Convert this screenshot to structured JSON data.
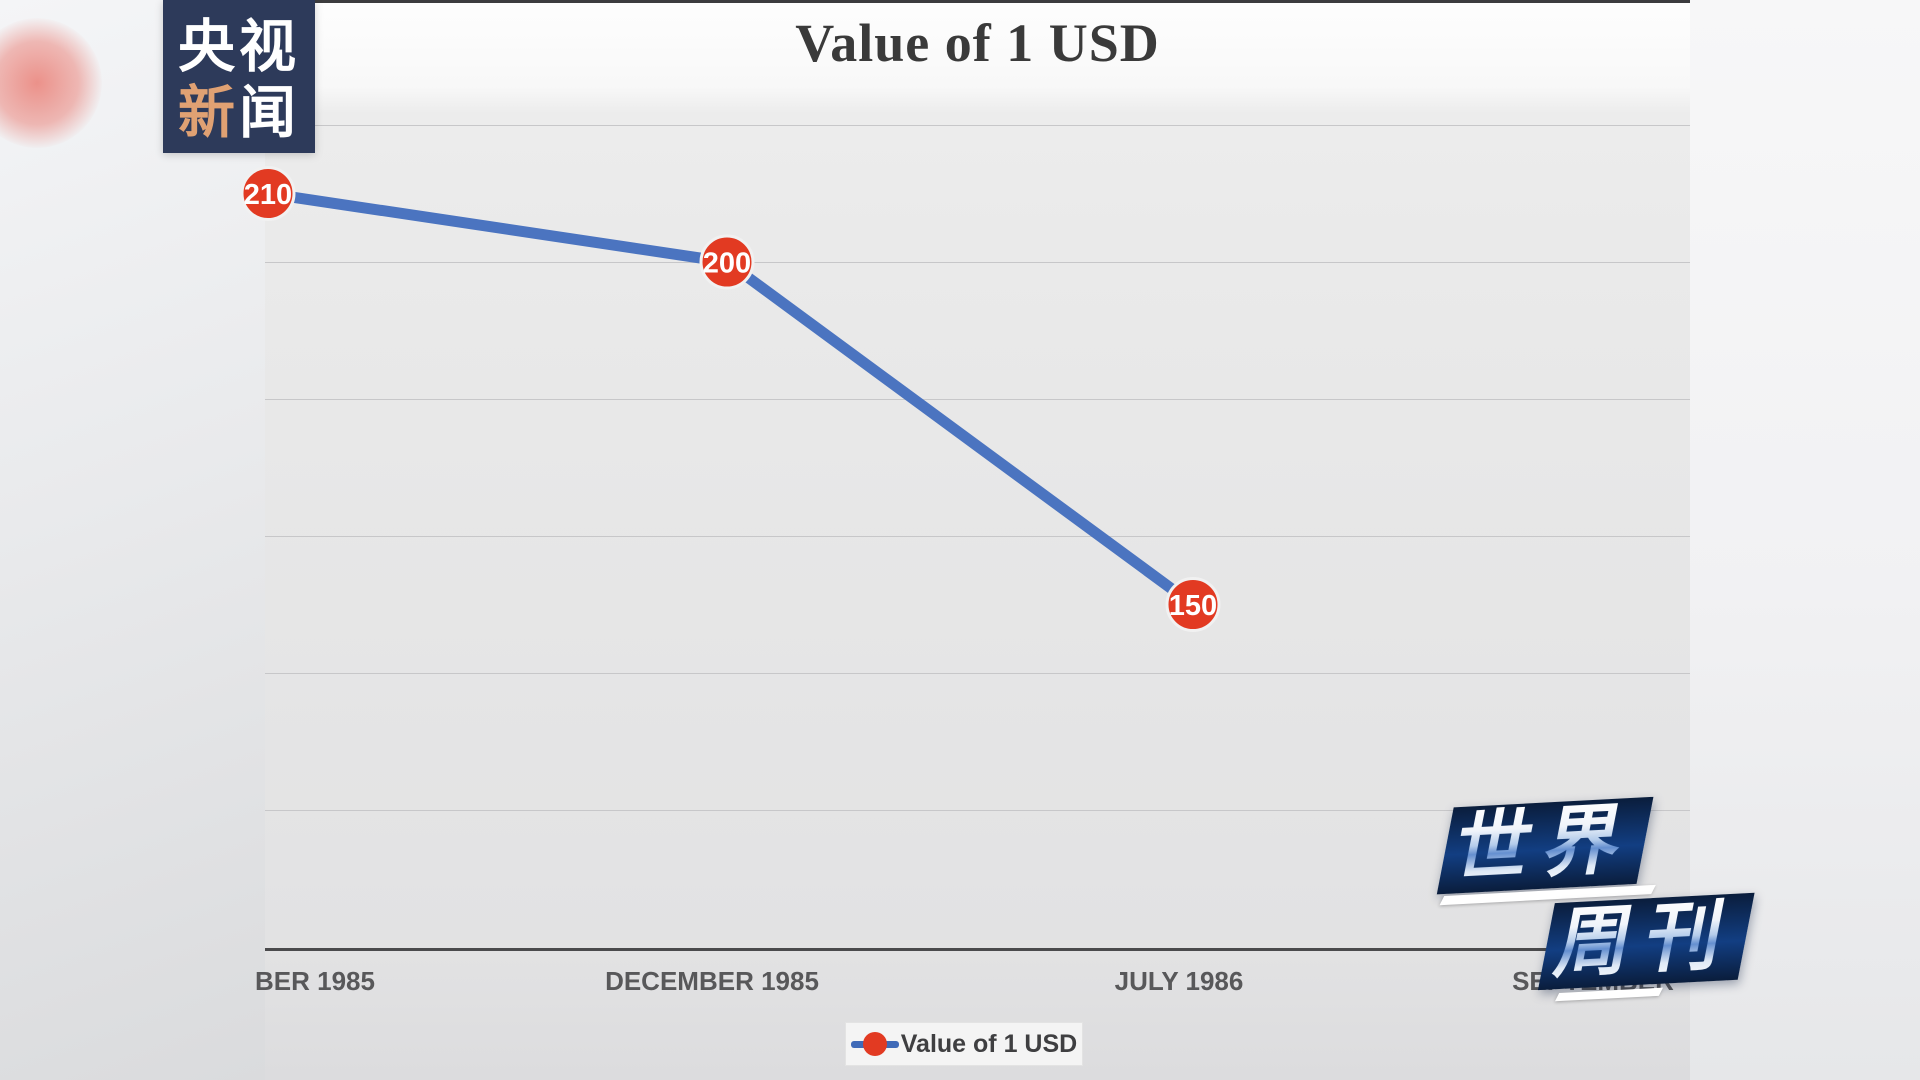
{
  "branding": {
    "logo": {
      "row1": "央视",
      "row2_accent": "新",
      "row2_rest": "闻",
      "bg_color": "#2d3a5a",
      "accent_color": "#e0a173"
    },
    "watermark": {
      "line1": "世界",
      "line2": "周刊"
    }
  },
  "chart_data": {
    "type": "line",
    "title": "Value of 1 USD",
    "xlabel": "",
    "ylabel": "",
    "x_tick_labels": [
      "BER 1985",
      "DECEMBER 1985",
      "JULY 1986",
      "SEPTEMBER"
    ],
    "series": [
      {
        "name": "Value of 1 USD",
        "categories": [
          "BER 1985",
          "DECEMBER 1985",
          "JULY 1986"
        ],
        "values": [
          210,
          200,
          150
        ],
        "point_labels": [
          "210",
          "200",
          "150"
        ]
      }
    ],
    "y_gridline_values": [
      220,
      200,
      180,
      160,
      140,
      120
    ],
    "ylim": [
      100,
      222
    ],
    "grid": "horizontal-only",
    "y_axis_tick_labels_visible": false,
    "legend": {
      "position": "bottom-center",
      "entries": [
        "Value of 1 USD"
      ]
    },
    "colors": {
      "line": "#4b74c0",
      "marker_fill": "#e23a22",
      "marker_ring": "#f1f1f1",
      "marker_label": "#ffffff",
      "title": "#3a3a3a",
      "tick_label": "#58585a",
      "gridline": "#c7c7c9",
      "axis_line": "#4a4a4c",
      "legend_dot": "#e23a22",
      "legend_line": "#3f6ab8"
    }
  }
}
